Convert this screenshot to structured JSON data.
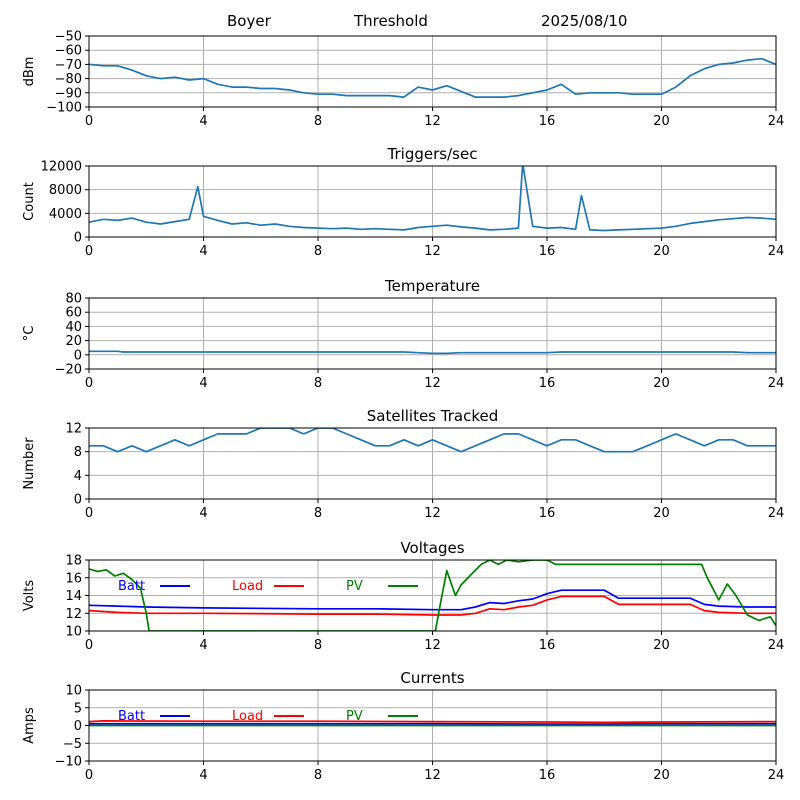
{
  "header": {
    "station": "Boyer",
    "mode": "Threshold",
    "date": "2025/08/10"
  },
  "colors": {
    "primary": "#1f77b4",
    "batt": "#0000ff",
    "load": "#ff0000",
    "pv": "#008000",
    "grid": "#b0b0b0"
  },
  "chart_data": [
    {
      "id": "signal",
      "type": "line",
      "title": "",
      "ylabel": "dBm",
      "xlim": [
        0,
        24
      ],
      "ylim": [
        -100,
        -50
      ],
      "xticks": [
        0,
        4,
        8,
        12,
        16,
        20,
        24
      ],
      "yticks": [
        -100,
        -90,
        -80,
        -70,
        -60,
        -50
      ],
      "grid": true,
      "series": [
        {
          "color": "#1f77b4",
          "x": [
            0,
            0.5,
            1,
            1.5,
            2,
            2.5,
            3,
            3.5,
            4,
            4.5,
            5,
            5.5,
            6,
            6.5,
            7,
            7.5,
            8,
            8.5,
            9,
            9.5,
            10,
            10.5,
            11,
            11.5,
            12,
            12.5,
            13,
            13.5,
            14,
            14.5,
            15,
            15.5,
            16,
            16.5,
            17,
            17.5,
            18,
            18.5,
            19,
            19.5,
            20,
            20.5,
            21,
            21.5,
            22,
            22.5,
            23,
            23.5,
            24
          ],
          "y": [
            -70,
            -71,
            -71,
            -74,
            -78,
            -80,
            -79,
            -81,
            -80,
            -84,
            -86,
            -86,
            -87,
            -87,
            -88,
            -90,
            -91,
            -91,
            -92,
            -92,
            -92,
            -92,
            -93,
            -86,
            -88,
            -85,
            -89,
            -93,
            -93,
            -93,
            -92,
            -90,
            -88,
            -84,
            -91,
            -90,
            -90,
            -90,
            -91,
            -91,
            -91,
            -86,
            -78,
            -73,
            -70,
            -69,
            -67,
            -66,
            -70
          ]
        }
      ]
    },
    {
      "id": "triggers",
      "type": "line",
      "title": "Triggers/sec",
      "ylabel": "Count",
      "xlim": [
        0,
        24
      ],
      "ylim": [
        0,
        12000
      ],
      "xticks": [
        0,
        4,
        8,
        12,
        16,
        20,
        24
      ],
      "yticks": [
        0,
        4000,
        8000,
        12000
      ],
      "grid": true,
      "series": [
        {
          "color": "#1f77b4",
          "x": [
            0,
            0.5,
            1,
            1.5,
            2,
            2.5,
            3,
            3.5,
            3.8,
            4,
            4.5,
            5,
            5.5,
            6,
            6.5,
            7,
            7.5,
            8,
            8.5,
            9,
            9.5,
            10,
            10.5,
            11,
            11.5,
            12,
            12.5,
            13,
            13.5,
            14,
            14.5,
            15,
            15.15,
            15.5,
            16,
            16.5,
            17,
            17.2,
            17.5,
            18,
            18.5,
            19,
            19.5,
            20,
            20.5,
            21,
            21.5,
            22,
            22.5,
            23,
            23.5,
            24
          ],
          "y": [
            2500,
            3000,
            2800,
            3200,
            2500,
            2200,
            2600,
            3000,
            8500,
            3500,
            2800,
            2200,
            2400,
            2000,
            2200,
            1800,
            1600,
            1500,
            1400,
            1500,
            1300,
            1400,
            1300,
            1200,
            1600,
            1800,
            2000,
            1700,
            1500,
            1200,
            1300,
            1500,
            12400,
            1800,
            1500,
            1600,
            1300,
            7000,
            1200,
            1100,
            1200,
            1300,
            1400,
            1500,
            1800,
            2300,
            2600,
            2900,
            3100,
            3300,
            3200,
            3000
          ]
        }
      ]
    },
    {
      "id": "temperature",
      "type": "line",
      "title": "Temperature",
      "ylabel": "°C",
      "xlim": [
        0,
        24
      ],
      "ylim": [
        -20,
        80
      ],
      "xticks": [
        0,
        4,
        8,
        12,
        16,
        20,
        24
      ],
      "yticks": [
        -20,
        0,
        20,
        40,
        60,
        80
      ],
      "grid": true,
      "series": [
        {
          "color": "#1f77b4",
          "x": [
            0,
            1,
            1.2,
            4,
            8,
            11,
            11.5,
            12,
            12.5,
            13,
            16,
            16.5,
            20,
            22.5,
            23,
            24
          ],
          "y": [
            5,
            5,
            4,
            4,
            4,
            4,
            3,
            2,
            2,
            3,
            3,
            4,
            4,
            4,
            3,
            3
          ]
        }
      ]
    },
    {
      "id": "satellites",
      "type": "line",
      "title": "Satellites Tracked",
      "ylabel": "Number",
      "xlim": [
        0,
        24
      ],
      "ylim": [
        0,
        12
      ],
      "xticks": [
        0,
        4,
        8,
        12,
        16,
        20,
        24
      ],
      "yticks": [
        0,
        4,
        8,
        12
      ],
      "grid": true,
      "series": [
        {
          "color": "#1f77b4",
          "x": [
            0,
            0.5,
            1,
            1.5,
            2,
            2.5,
            3,
            3.5,
            4,
            4.5,
            5,
            5.5,
            6,
            6.5,
            7,
            7.5,
            8,
            8.5,
            9,
            9.5,
            10,
            10.5,
            11,
            11.5,
            12,
            12.5,
            13,
            13.5,
            14,
            14.5,
            15,
            15.5,
            16,
            16.5,
            17,
            17.5,
            18,
            18.5,
            19,
            19.5,
            20,
            20.5,
            21,
            21.5,
            22,
            22.5,
            23,
            23.5,
            24
          ],
          "y": [
            9,
            9,
            8,
            9,
            8,
            9,
            10,
            9,
            10,
            11,
            11,
            11,
            12,
            12,
            12,
            11,
            12,
            12,
            11,
            10,
            9,
            9,
            10,
            9,
            10,
            9,
            8,
            9,
            10,
            11,
            11,
            10,
            9,
            10,
            10,
            9,
            8,
            8,
            8,
            9,
            10,
            11,
            10,
            9,
            10,
            10,
            9,
            9,
            9
          ]
        }
      ]
    },
    {
      "id": "voltages",
      "type": "line",
      "title": "Voltages",
      "ylabel": "Volts",
      "xlim": [
        0,
        24
      ],
      "ylim": [
        10,
        18
      ],
      "xticks": [
        0,
        4,
        8,
        12,
        16,
        20,
        24
      ],
      "yticks": [
        10,
        12,
        14,
        16,
        18
      ],
      "grid": true,
      "legend": "inline-top",
      "series": [
        {
          "name": "Batt",
          "color": "#0000ff",
          "x": [
            0,
            1,
            2,
            4,
            8,
            10,
            12,
            13,
            13.5,
            14,
            14.5,
            15,
            15.5,
            16,
            16.5,
            17,
            18,
            18.5,
            19,
            20,
            21,
            21.5,
            22,
            23,
            24
          ],
          "y": [
            12.9,
            12.8,
            12.7,
            12.6,
            12.5,
            12.5,
            12.4,
            12.4,
            12.7,
            13.2,
            13.1,
            13.4,
            13.6,
            14.2,
            14.6,
            14.6,
            14.6,
            13.7,
            13.7,
            13.7,
            13.7,
            13.0,
            12.8,
            12.7,
            12.7
          ]
        },
        {
          "name": "Load",
          "color": "#ff0000",
          "x": [
            0,
            1,
            2,
            4,
            8,
            10,
            12,
            13,
            13.5,
            14,
            14.5,
            15,
            15.5,
            16,
            16.5,
            17,
            18,
            18.5,
            19,
            20,
            21,
            21.5,
            22,
            23,
            24
          ],
          "y": [
            12.3,
            12.1,
            12.0,
            12.0,
            11.9,
            11.9,
            11.8,
            11.8,
            12.0,
            12.5,
            12.4,
            12.7,
            12.9,
            13.5,
            13.9,
            13.9,
            13.9,
            13.0,
            13.0,
            13.0,
            13.0,
            12.3,
            12.1,
            12.0,
            12.0
          ]
        },
        {
          "name": "PV",
          "color": "#008000",
          "x": [
            0,
            0.3,
            0.6,
            0.9,
            1.2,
            1.5,
            1.8,
            2.0,
            2.1,
            12.1,
            12.3,
            12.5,
            12.8,
            13.0,
            13.3,
            13.7,
            14.0,
            14.3,
            14.6,
            15,
            15.5,
            16,
            16.3,
            21.4,
            21.6,
            22,
            22.3,
            22.6,
            23,
            23.4,
            23.8,
            24
          ],
          "y": [
            17,
            16.7,
            16.9,
            16.2,
            16.5,
            15.8,
            14.8,
            12,
            10,
            10,
            13.5,
            16.8,
            14.0,
            15.2,
            16.2,
            17.5,
            18,
            17.5,
            18,
            17.8,
            18,
            18,
            17.5,
            17.5,
            16,
            13.5,
            15.3,
            14.0,
            11.8,
            11.2,
            11.6,
            10.6
          ]
        }
      ]
    },
    {
      "id": "currents",
      "type": "line",
      "title": "Currents",
      "ylabel": "Amps",
      "xlim": [
        0,
        24
      ],
      "ylim": [
        -10,
        10
      ],
      "xticks": [
        0,
        4,
        8,
        12,
        16,
        20,
        24
      ],
      "yticks": [
        -10,
        -5,
        0,
        5,
        10
      ],
      "grid": true,
      "legend": "inline-top",
      "series": [
        {
          "name": "Batt",
          "color": "#0000ff",
          "x": [
            0,
            4,
            8,
            12,
            16,
            18,
            20,
            24
          ],
          "y": [
            0.5,
            0.5,
            0.5,
            0.5,
            0.4,
            0.4,
            0.5,
            0.5
          ]
        },
        {
          "name": "Load",
          "color": "#ff0000",
          "x": [
            0,
            0.5,
            4,
            8,
            12,
            16,
            18,
            20,
            24
          ],
          "y": [
            1.1,
            1.3,
            1.2,
            1.2,
            1.1,
            1.0,
            0.9,
            1.0,
            1.1
          ]
        },
        {
          "name": "PV",
          "color": "#008000",
          "x": [
            0,
            4,
            8,
            12,
            16,
            20,
            24
          ],
          "y": [
            0,
            0,
            0,
            0,
            0,
            0,
            0
          ]
        }
      ]
    }
  ]
}
